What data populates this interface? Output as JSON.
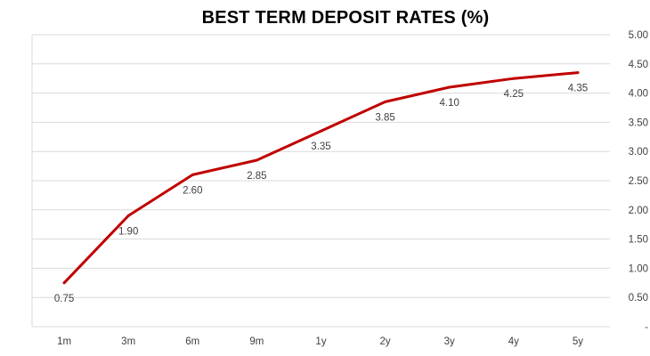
{
  "chart_data": {
    "type": "line",
    "title": "BEST TERM DEPOSIT RATES (%)",
    "categories": [
      "1m",
      "3m",
      "6m",
      "9m",
      "1y",
      "2y",
      "3y",
      "4y",
      "5y"
    ],
    "series": [
      {
        "values": [
          0.75,
          1.9,
          2.6,
          2.85,
          3.35,
          3.85,
          4.1,
          4.25,
          4.35
        ],
        "data_labels": [
          "0.75",
          "1.90",
          "2.60",
          "2.85",
          "3.35",
          "3.85",
          "4.10",
          "4.25",
          "4.35"
        ],
        "color": "#C00000"
      }
    ],
    "ylim": [
      0,
      5
    ],
    "yticks": [
      0,
      0.5,
      1,
      1.5,
      2,
      2.5,
      3,
      3.5,
      4,
      4.5,
      5
    ],
    "ytick_labels": [
      "-",
      "0.50",
      "1.00",
      "1.50",
      "2.00",
      "2.50",
      "3.00",
      "3.50",
      "4.00",
      "4.50",
      "5.00"
    ],
    "y_axis_side": "right",
    "grid": true,
    "grid_color": "#D9D9D9",
    "legend": "none"
  }
}
